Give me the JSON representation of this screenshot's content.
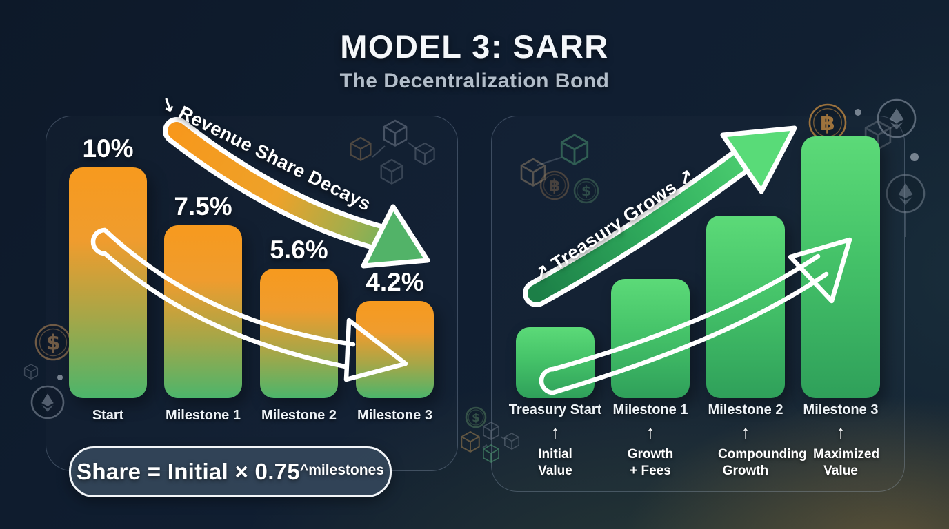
{
  "header": {
    "title": "MODEL 3: SARR",
    "subtitle": "The Decentralization Bond"
  },
  "left_panel": {
    "name": "Revenue Share Decays",
    "arrow_label": "↘ Revenue Share Decays",
    "formula_base": "Share = Initial × 0.75",
    "formula_superscript": "^milestones"
  },
  "right_panel": {
    "name": "Treasury Grows",
    "arrow_label": "↗ Treasury Grows ↗",
    "caption_arrow": "↑"
  },
  "icons": {
    "bitcoin": "฿",
    "dollar": "$"
  },
  "colors": {
    "background": "#0F1C2E",
    "bar_orange_top": "#F7981C",
    "bar_green_bottom": "#4CB56B",
    "treasury_green_light": "#5CDA78",
    "treasury_green_dark": "#2FA05A",
    "title_white": "#F4F7FA",
    "subtitle_gray": "#B2BDC9"
  },
  "chart_data": [
    {
      "type": "bar",
      "title": "Revenue Share Decays",
      "categories": [
        "Start",
        "Milestone 1",
        "Milestone 2",
        "Milestone 3"
      ],
      "values": [
        10,
        7.5,
        5.6,
        4.2
      ],
      "value_labels": [
        "10%",
        "7.5%",
        "5.6%",
        "4.2%"
      ],
      "unit": "%",
      "annotation": "↘ Revenue Share Decays",
      "formula": "Share = Initial × 0.75^milestones",
      "bar_gradient": [
        "#F7981C",
        "#4CB56B"
      ],
      "legend_position": "none",
      "grid": false
    },
    {
      "type": "bar",
      "title": "Treasury Grows",
      "categories": [
        "Treasury Start",
        "Milestone 1",
        "Milestone 2",
        "Milestone 3"
      ],
      "values_relative": [
        1.0,
        1.68,
        2.57,
        3.69
      ],
      "captions": [
        "Initial Value",
        "Growth + Fees",
        "Compounding Growth",
        "Maximized Value"
      ],
      "annotation": "↗ Treasury Grows ↗",
      "bar_gradient": [
        "#5CDA78",
        "#2FA05A"
      ],
      "legend_position": "none",
      "grid": false
    }
  ]
}
